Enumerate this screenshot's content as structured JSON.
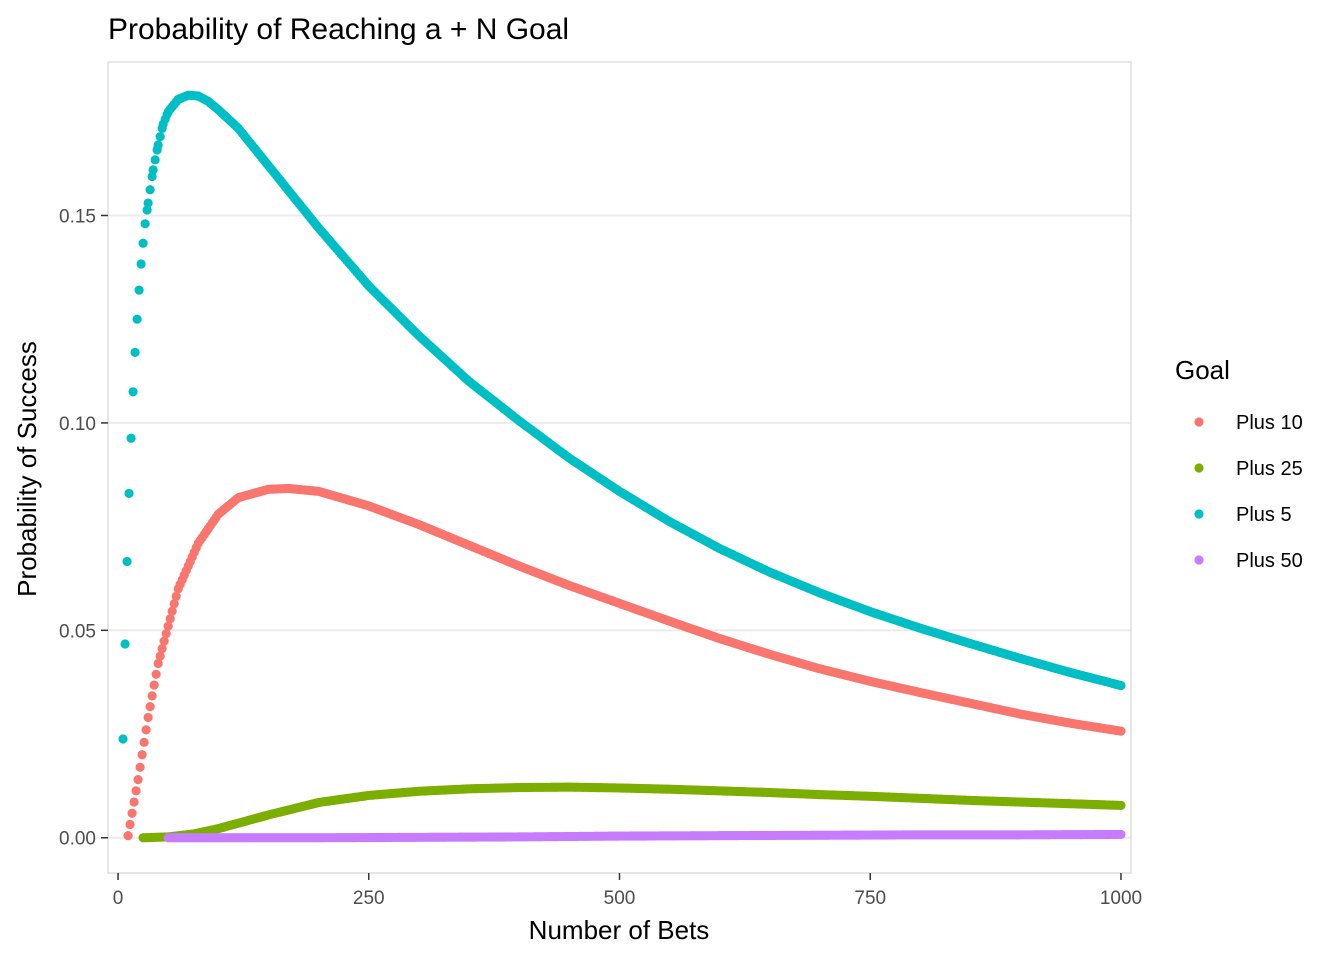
{
  "chart_data": {
    "type": "scatter",
    "title": "Probability of Reaching a + N Goal",
    "xlabel": "Number of Bets",
    "ylabel": "Probability of Success",
    "xlim": [
      -10,
      1010
    ],
    "ylim": [
      -0.0085,
      0.187
    ],
    "x_ticks": [
      0,
      250,
      500,
      750,
      1000
    ],
    "x_tick_labels": [
      "0",
      "250",
      "500",
      "750",
      "1000"
    ],
    "y_ticks": [
      0.0,
      0.05,
      0.1,
      0.15
    ],
    "y_tick_labels": [
      "0.00",
      "0.05",
      "0.10",
      "0.15"
    ],
    "grid": true,
    "legend": {
      "title": "Goal",
      "position": "right"
    },
    "series": [
      {
        "name": "Plus 10",
        "color": "#F8766D",
        "x": [
          10,
          20,
          30,
          40,
          50,
          60,
          80,
          100,
          120,
          150,
          170,
          200,
          250,
          300,
          350,
          400,
          450,
          500,
          550,
          600,
          650,
          700,
          750,
          800,
          850,
          900,
          950,
          1000
        ],
        "values": [
          0.0005,
          0.014,
          0.029,
          0.042,
          0.051,
          0.06,
          0.071,
          0.078,
          0.082,
          0.084,
          0.0842,
          0.0835,
          0.08,
          0.0755,
          0.0705,
          0.0655,
          0.0608,
          0.0565,
          0.0522,
          0.048,
          0.0442,
          0.0407,
          0.0377,
          0.035,
          0.0324,
          0.0298,
          0.0276,
          0.0257
        ]
      },
      {
        "name": "Plus 25",
        "color": "#7CAE00",
        "x": [
          25,
          50,
          75,
          100,
          150,
          200,
          250,
          300,
          350,
          400,
          450,
          500,
          550,
          600,
          650,
          700,
          750,
          800,
          850,
          900,
          950,
          1000
        ],
        "values": [
          0.0,
          0.0002,
          0.0009,
          0.0022,
          0.0055,
          0.0085,
          0.0102,
          0.0112,
          0.0118,
          0.0121,
          0.0122,
          0.012,
          0.0117,
          0.0113,
          0.0109,
          0.0104,
          0.01,
          0.0095,
          0.009,
          0.0086,
          0.0082,
          0.0078
        ]
      },
      {
        "name": "Plus 5",
        "color": "#00BFC4",
        "x": [
          5,
          7,
          9,
          11,
          13,
          15,
          17,
          19,
          21,
          23,
          25,
          27,
          30,
          35,
          40,
          45,
          50,
          60,
          70,
          80,
          90,
          100,
          120,
          150,
          200,
          250,
          300,
          350,
          400,
          450,
          500,
          550,
          600,
          650,
          700,
          750,
          800,
          850,
          900,
          950,
          1000
        ],
        "values": [
          0.0238,
          0.0467,
          0.0666,
          0.083,
          0.0963,
          0.1075,
          0.117,
          0.125,
          0.132,
          0.1383,
          0.1433,
          0.148,
          0.153,
          0.161,
          0.167,
          0.172,
          0.175,
          0.178,
          0.179,
          0.1788,
          0.1775,
          0.1755,
          0.171,
          0.162,
          0.147,
          0.133,
          0.121,
          0.11,
          0.1005,
          0.0915,
          0.0835,
          0.0762,
          0.0697,
          0.064,
          0.059,
          0.0545,
          0.0505,
          0.0468,
          0.0432,
          0.0398,
          0.0367
        ]
      },
      {
        "name": "Plus 50",
        "color": "#C77CFF",
        "x": [
          50,
          100,
          200,
          300,
          400,
          500,
          600,
          700,
          800,
          900,
          1000
        ],
        "values": [
          0.0,
          0.0,
          0.0,
          0.0001,
          0.0002,
          0.0004,
          0.0005,
          0.0006,
          0.0007,
          0.0007,
          0.0008
        ]
      }
    ]
  }
}
